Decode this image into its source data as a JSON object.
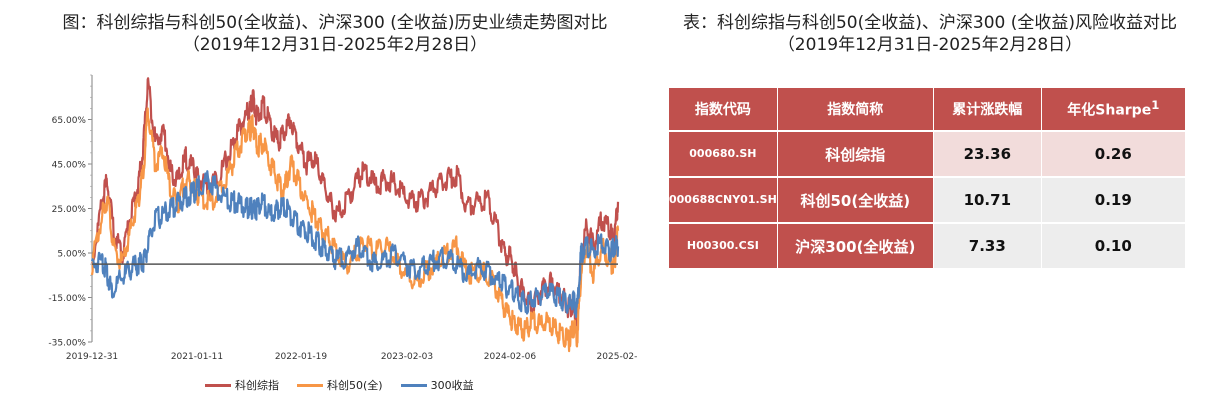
{
  "left_panel": {
    "title_line1": "图：科创综指与科创50(全收益)、沪深300 (全收益)历史业绩走势图对比",
    "title_line2": "（2019年12月31日-2025年2月28日）"
  },
  "right_panel": {
    "title_line1": "表：科创综指与科创50(全收益)、沪深300 (全收益)风险收益对比",
    "title_line2": "（2019年12月31日-2025年2月28日）"
  },
  "chart_data": {
    "type": "line",
    "y_ticks": [
      "65.00%",
      "45.00%",
      "25.00%",
      "5.00%",
      "-15.00%",
      "-35.00%"
    ],
    "y_tick_values": [
      65,
      45,
      25,
      5,
      -15,
      -35
    ],
    "ylim": [
      -35,
      85
    ],
    "baseline": 0,
    "x_ticks": [
      "2019-12-31",
      "2021-01-11",
      "2022-01-19",
      "2023-02-03",
      "2024-02-06",
      "2025-02-"
    ],
    "x_tick_positions": [
      0,
      1.03,
      2.05,
      3.09,
      4.1,
      5.15
    ],
    "xlim": [
      0,
      5.16
    ],
    "grid": false,
    "legend_position": "bottom",
    "series": [
      {
        "name": "科创综指",
        "color": "#c0504d",
        "x": [
          0,
          0.1,
          0.15,
          0.22,
          0.3,
          0.38,
          0.45,
          0.5,
          0.55,
          0.62,
          0.7,
          0.78,
          0.85,
          0.92,
          1.0,
          1.05,
          1.15,
          1.25,
          1.35,
          1.42,
          1.5,
          1.55,
          1.58,
          1.62,
          1.68,
          1.75,
          1.82,
          1.88,
          1.95,
          2.02,
          2.1,
          2.18,
          2.25,
          2.32,
          2.4,
          2.5,
          2.6,
          2.68,
          2.78,
          2.88,
          2.98,
          3.08,
          3.18,
          3.28,
          3.38,
          3.48,
          3.58,
          3.68,
          3.78,
          3.88,
          3.98,
          4.05,
          4.12,
          4.18,
          4.25,
          4.32,
          4.4,
          4.48,
          4.55,
          4.62,
          4.68,
          4.72,
          4.76,
          4.8,
          4.85,
          4.92,
          5.0,
          5.08,
          5.12,
          5.16
        ],
        "values": [
          0,
          28,
          38,
          12,
          5,
          22,
          35,
          50,
          82,
          55,
          60,
          40,
          38,
          48,
          42,
          38,
          35,
          40,
          50,
          58,
          66,
          70,
          75,
          65,
          72,
          62,
          55,
          58,
          65,
          55,
          45,
          48,
          38,
          30,
          22,
          28,
          38,
          42,
          35,
          38,
          36,
          30,
          28,
          30,
          35,
          38,
          40,
          25,
          28,
          30,
          15,
          5,
          2,
          -8,
          -15,
          -20,
          -12,
          -8,
          -10,
          -15,
          -20,
          -18,
          -25,
          5,
          18,
          8,
          20,
          15,
          10,
          28
        ]
      },
      {
        "name": "科创50(全)",
        "color": "#f79646",
        "x": [
          0,
          0.1,
          0.15,
          0.22,
          0.3,
          0.38,
          0.45,
          0.5,
          0.55,
          0.62,
          0.7,
          0.78,
          0.85,
          0.92,
          1.0,
          1.05,
          1.15,
          1.25,
          1.35,
          1.42,
          1.5,
          1.55,
          1.58,
          1.62,
          1.68,
          1.75,
          1.82,
          1.88,
          1.95,
          2.02,
          2.1,
          2.18,
          2.25,
          2.32,
          2.4,
          2.5,
          2.6,
          2.68,
          2.78,
          2.88,
          2.98,
          3.08,
          3.18,
          3.28,
          3.38,
          3.48,
          3.58,
          3.68,
          3.78,
          3.88,
          3.98,
          4.05,
          4.12,
          4.18,
          4.25,
          4.32,
          4.4,
          4.48,
          4.55,
          4.62,
          4.68,
          4.72,
          4.76,
          4.8,
          4.85,
          4.92,
          5.0,
          5.08,
          5.12,
          5.16
        ],
        "values": [
          0,
          22,
          30,
          5,
          0,
          15,
          28,
          40,
          70,
          45,
          50,
          30,
          28,
          38,
          35,
          30,
          28,
          32,
          42,
          50,
          58,
          60,
          63,
          52,
          55,
          45,
          38,
          32,
          45,
          38,
          28,
          22,
          15,
          12,
          5,
          0,
          5,
          10,
          5,
          8,
          2,
          -5,
          -8,
          -3,
          0,
          5,
          8,
          -5,
          -3,
          -5,
          -12,
          -20,
          -25,
          -28,
          -30,
          -25,
          -28,
          -26,
          -30,
          -32,
          -35,
          -28,
          -33,
          -2,
          8,
          -5,
          8,
          2,
          -2,
          15
        ]
      },
      {
        "name": "300收益",
        "color": "#4f81bd",
        "x": [
          0,
          0.1,
          0.15,
          0.2,
          0.3,
          0.38,
          0.45,
          0.5,
          0.55,
          0.62,
          0.7,
          0.78,
          0.85,
          0.92,
          1.0,
          1.05,
          1.15,
          1.25,
          1.35,
          1.42,
          1.5,
          1.55,
          1.58,
          1.62,
          1.68,
          1.75,
          1.82,
          1.88,
          1.95,
          2.02,
          2.1,
          2.18,
          2.25,
          2.32,
          2.4,
          2.5,
          2.6,
          2.68,
          2.78,
          2.88,
          2.98,
          3.08,
          3.18,
          3.28,
          3.38,
          3.48,
          3.58,
          3.68,
          3.78,
          3.88,
          3.98,
          4.05,
          4.12,
          4.18,
          4.25,
          4.32,
          4.4,
          4.48,
          4.55,
          4.62,
          4.68,
          4.72,
          4.76,
          4.8,
          4.85,
          4.92,
          5.0,
          5.08,
          5.12,
          5.16
        ],
        "values": [
          0,
          2,
          -5,
          -12,
          -6,
          -2,
          0,
          1,
          8,
          20,
          22,
          25,
          28,
          30,
          32,
          35,
          38,
          32,
          28,
          28,
          25,
          26,
          24,
          25,
          28,
          22,
          24,
          26,
          22,
          18,
          15,
          12,
          8,
          5,
          2,
          3,
          8,
          5,
          0,
          2,
          5,
          0,
          -3,
          0,
          2,
          3,
          0,
          -5,
          -2,
          -3,
          -8,
          -10,
          -12,
          -15,
          -18,
          -15,
          -14,
          -12,
          -14,
          -16,
          -18,
          -17,
          -20,
          5,
          8,
          6,
          10,
          5,
          7,
          8
        ]
      }
    ]
  },
  "table": {
    "headers": [
      "指数代码",
      "指数简称",
      "累计涨跌幅",
      "年化Sharpe"
    ],
    "header_superscript": "1",
    "rows": [
      {
        "code": "000680.SH",
        "name": "科创综指",
        "cum": "23.36",
        "sharpe": "0.26"
      },
      {
        "code": "000688CNY01.SH",
        "name": "科创50(全收益)",
        "cum": "10.71",
        "sharpe": "0.19"
      },
      {
        "code": "H00300.CSI",
        "name": "沪深300(全收益)",
        "cum": "7.33",
        "sharpe": "0.10"
      }
    ]
  }
}
